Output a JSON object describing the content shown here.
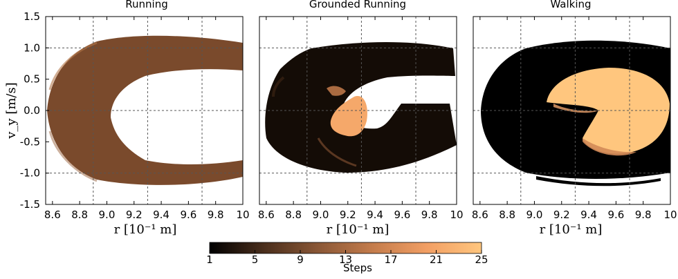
{
  "chart_data": {
    "type": "heatmap",
    "panels": [
      {
        "title": "Running"
      },
      {
        "title": "Grounded Running"
      },
      {
        "title": "Walking"
      }
    ],
    "xlabel": "r [10⁻¹ m]",
    "ylabel": "v_y [m/s]",
    "xlim": [
      8.55,
      10.0
    ],
    "ylim": [
      -1.5,
      1.5
    ],
    "xticks": [
      8.6,
      8.8,
      9.0,
      9.2,
      9.4,
      9.6,
      9.8,
      10
    ],
    "xtick_labels": [
      "8.6",
      "8.8",
      "9.0",
      "9.2",
      "9.4",
      "9.6",
      "9.8",
      "10"
    ],
    "yticks": [
      1.5,
      1.0,
      0.5,
      0.0,
      -0.5,
      -1.0,
      -1.5
    ],
    "ytick_labels": [
      "1.5",
      "1.0",
      "0.5",
      "0.0",
      "-0.5",
      "-1.0",
      "-1.5"
    ],
    "grid_x": [
      8.9,
      9.3,
      9.7
    ],
    "grid_y": [
      1.0,
      0.0,
      -1.0
    ],
    "colorbar": {
      "label": "Steps",
      "min": 1,
      "max": 25,
      "ticks": [
        1,
        5,
        9,
        13,
        17,
        21,
        25
      ],
      "tick_labels": [
        "1",
        "5",
        "9",
        "13",
        "17",
        "21",
        "25"
      ],
      "colors": [
        "#000000",
        "#4a2e1c",
        "#8a5736",
        "#c47c4c",
        "#f29f64",
        "#ffc67e"
      ]
    },
    "colors": {
      "running": "#7a4a2c",
      "grounded_dark": "#140c06",
      "walking_dark": "#000000",
      "bright": "#ffc67e"
    }
  }
}
